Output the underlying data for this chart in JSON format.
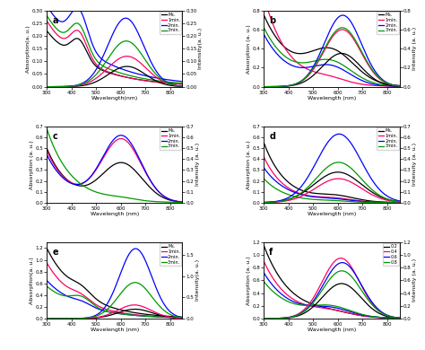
{
  "panels": [
    "a",
    "b",
    "c",
    "d",
    "e",
    "f"
  ],
  "legend_labels_abcde": [
    "Ms.",
    "1min.",
    "2min.",
    "3min."
  ],
  "legend_labels_f": [
    "0.2",
    "0.4",
    "0.6",
    "0.8"
  ],
  "colors": [
    "#000000",
    "#ff0066",
    "#0000ff",
    "#009900"
  ],
  "xlabel": "Wavelength(nm)",
  "xlabel_spaced": "Wavelength (nm)",
  "ylabel_left": "Absorption(a. u.)",
  "ylabel_left_spaced": "Absorption (a. u.)",
  "ylabel_right": "Intensity(a. u.)",
  "ylabel_right_spaced": "Intensity (a. u.)",
  "bg_color": "#ffffff"
}
